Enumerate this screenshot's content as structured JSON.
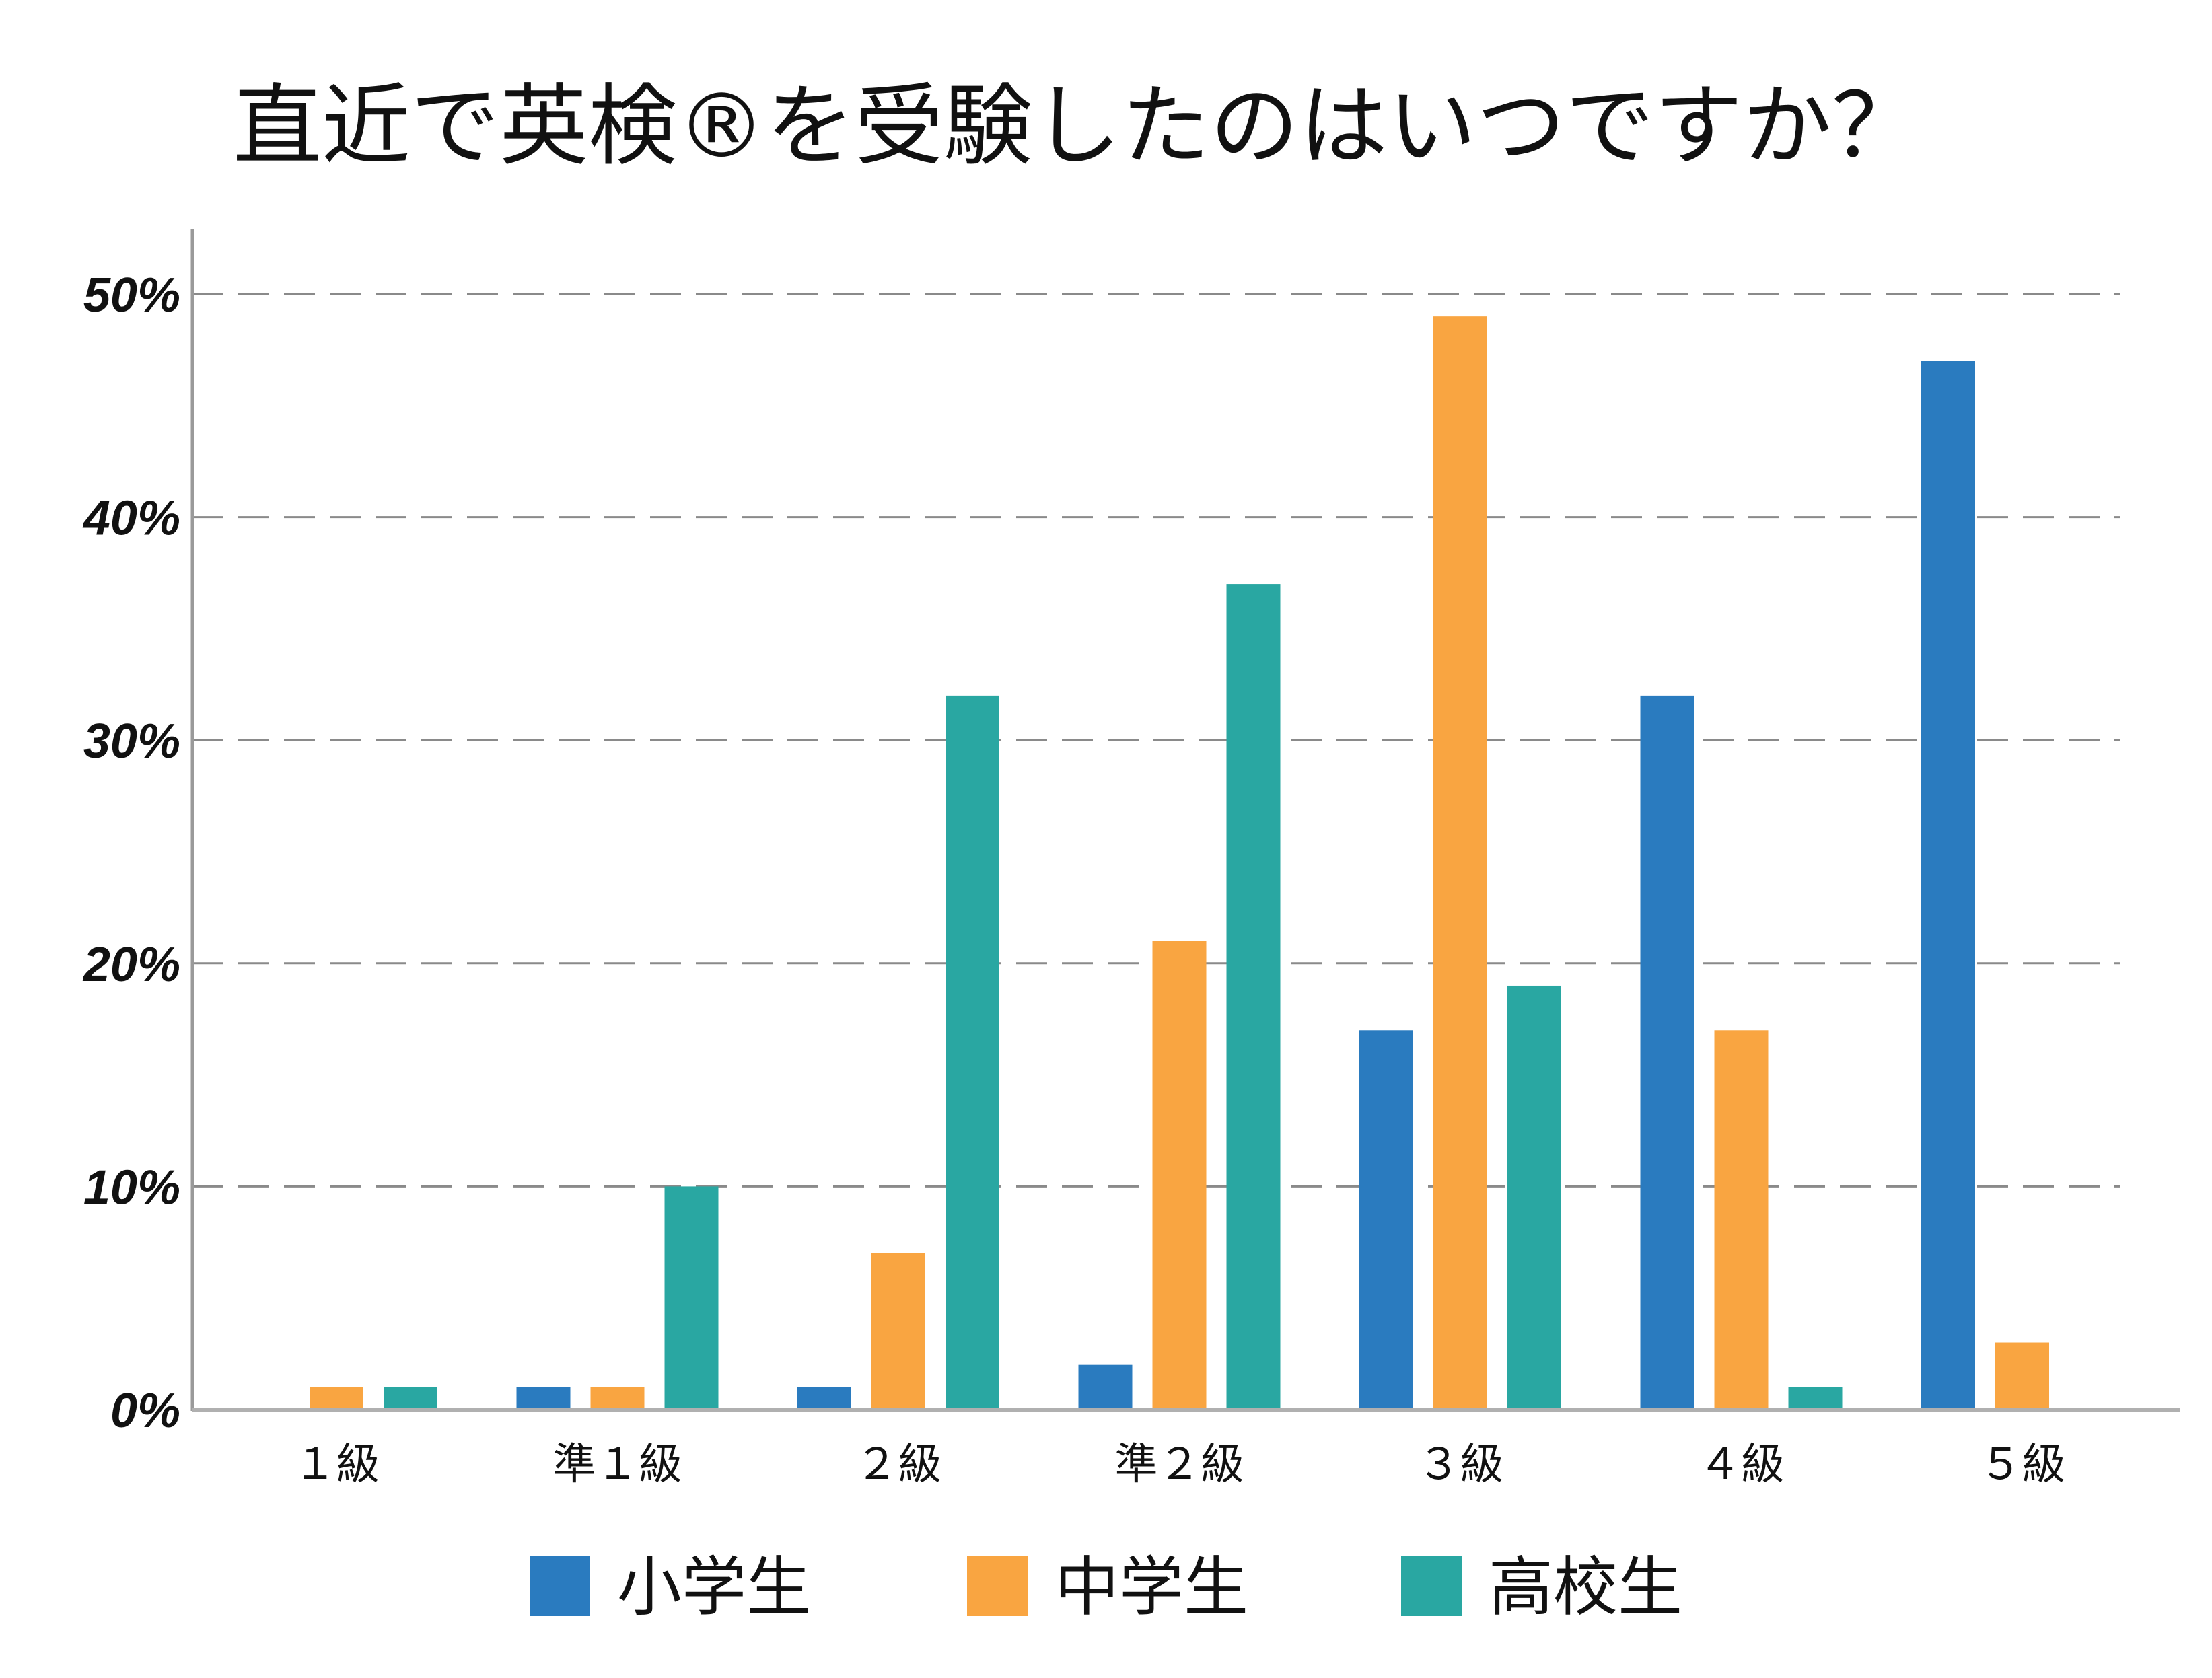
{
  "chart_data": {
    "type": "bar",
    "title": "直近で英検®を受験したのはいつですか？",
    "xlabel": "",
    "ylabel": "",
    "categories": [
      "１級",
      "準１級",
      "２級",
      "準２級",
      "３級",
      "４級",
      "５級"
    ],
    "series": [
      {
        "name": "小学生",
        "color": "#2a7bbf",
        "values": [
          0,
          1,
          1,
          2,
          17,
          32,
          47
        ]
      },
      {
        "name": "中学生",
        "color": "#f9a541",
        "values": [
          1,
          1,
          7,
          21,
          49,
          17,
          3
        ]
      },
      {
        "name": "高校生",
        "color": "#29a7a2",
        "values": [
          1,
          10,
          32,
          37,
          19,
          1,
          0
        ]
      }
    ],
    "ylim": [
      0,
      50
    ],
    "yticks": [
      0,
      10,
      20,
      30,
      40,
      50
    ],
    "ytick_labels": [
      "0%",
      "10%",
      "20%",
      "30%",
      "40%",
      "50%"
    ],
    "grid": "horizontal-dashed",
    "legend_position": "bottom"
  }
}
